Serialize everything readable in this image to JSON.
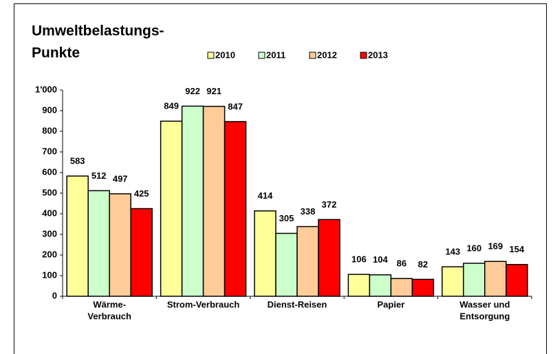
{
  "chart_data": {
    "type": "bar",
    "title": [
      "Umweltbelastungs-",
      "Punkte"
    ],
    "categories": [
      [
        "Wärme-",
        "Verbrauch"
      ],
      [
        "Strom-Verbrauch"
      ],
      [
        "Dienst-Reisen"
      ],
      [
        "Papier"
      ],
      [
        "Wasser und",
        "Entsorgung"
      ]
    ],
    "series": [
      {
        "name": "2010",
        "color": "#ffff99",
        "values": [
          583,
          849,
          414,
          106,
          143
        ]
      },
      {
        "name": "2011",
        "color": "#ccffcc",
        "values": [
          512,
          922,
          305,
          104,
          160
        ]
      },
      {
        "name": "2012",
        "color": "#ffcc99",
        "values": [
          497,
          921,
          338,
          86,
          169
        ]
      },
      {
        "name": "2013",
        "color": "#ff0000",
        "values": [
          425,
          847,
          372,
          82,
          154
        ]
      }
    ],
    "ylim": [
      0,
      1000
    ],
    "yticks": [
      0,
      100,
      200,
      300,
      400,
      500,
      600,
      700,
      800,
      900,
      {
        "value": 1000,
        "label": "1'000"
      }
    ],
    "grid": false,
    "legend": "top"
  }
}
